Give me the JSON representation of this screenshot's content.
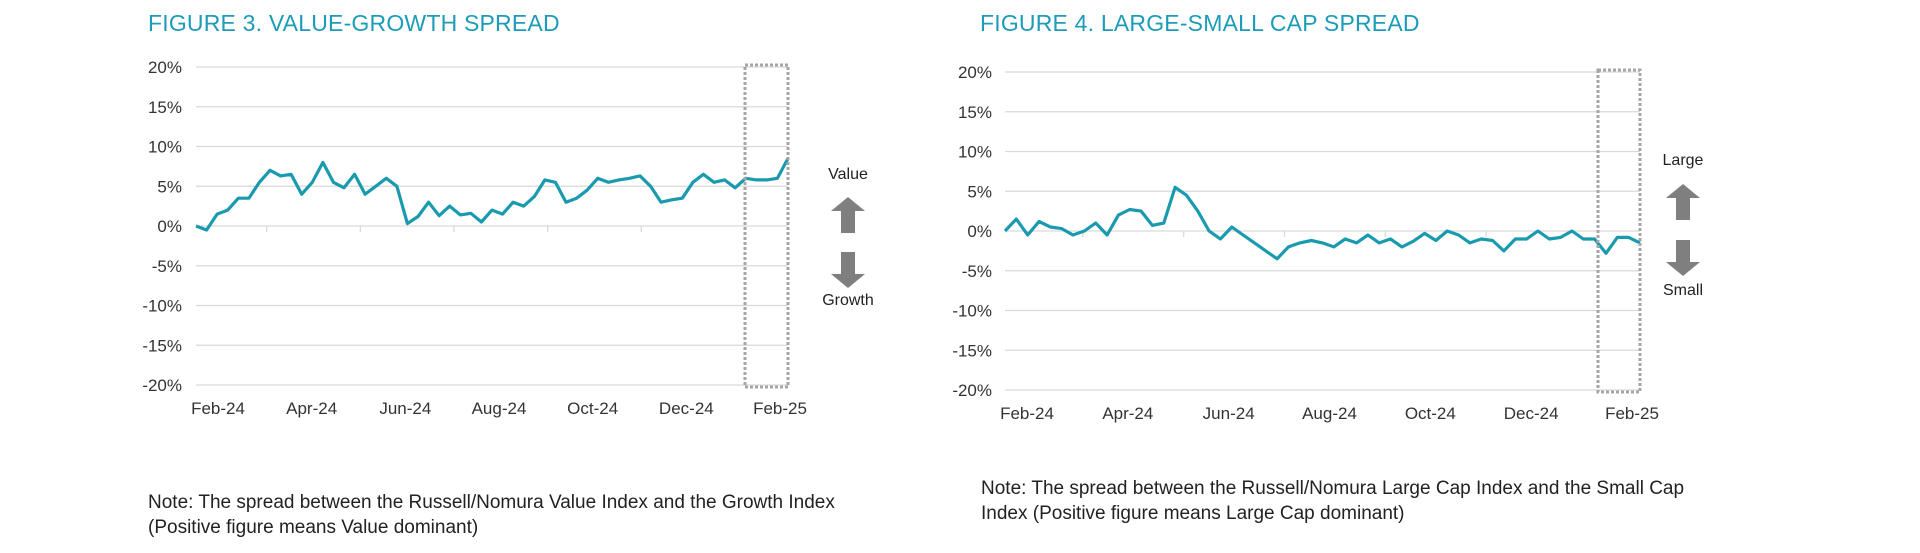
{
  "chart_data": [
    {
      "type": "line",
      "title": "FIGURE 3. VALUE-GROWTH SPREAD",
      "xlabel": "",
      "ylabel": "",
      "x_tick_labels": [
        "Feb-24",
        "Apr-24",
        "Jun-24",
        "Aug-24",
        "Oct-24",
        "Dec-24",
        "Feb-25"
      ],
      "x_range": [
        "Feb-24",
        "Feb-25"
      ],
      "y_tick_labels": [
        "20%",
        "15%",
        "10%",
        "5%",
        "0%",
        "-5%",
        "-10%",
        "-15%",
        "-20%"
      ],
      "ylim": [
        -20,
        20
      ],
      "grid": "horizontal",
      "line_color": "#1a9aae",
      "side_labels": {
        "up": "Value",
        "down": "Growth"
      },
      "series": [
        {
          "values": [
            0,
            -0.5,
            1.5,
            2,
            3.5,
            3.5,
            5.5,
            7,
            6.3,
            6.5,
            4,
            5.5,
            8,
            5.5,
            4.8,
            6.5,
            4,
            5,
            6,
            5,
            0.3,
            1.2,
            3,
            1.3,
            2.5,
            1.4,
            1.6,
            0.5,
            2,
            1.5,
            3,
            2.5,
            3.7,
            5.8,
            5.5,
            3,
            3.5,
            4.5,
            6,
            5.5,
            5.8,
            6,
            6.3,
            5,
            3,
            3.3,
            3.5,
            5.5,
            6.5,
            5.5,
            5.8,
            4.8,
            6,
            5.8,
            5.8,
            6,
            8.5
          ]
        }
      ],
      "note": "Note: The spread between the Russell/Nomura Value Index and the Growth Index (Positive figure means Value dominant)"
    },
    {
      "type": "line",
      "title": "FIGURE 4. LARGE-SMALL CAP SPREAD",
      "xlabel": "",
      "ylabel": "",
      "x_tick_labels": [
        "Feb-24",
        "Apr-24",
        "Jun-24",
        "Aug-24",
        "Oct-24",
        "Dec-24",
        "Feb-25"
      ],
      "x_range": [
        "Feb-24",
        "Feb-25"
      ],
      "y_tick_labels": [
        "20%",
        "15%",
        "10%",
        "5%",
        "0%",
        "-5%",
        "-10%",
        "-15%",
        "-20%"
      ],
      "ylim": [
        -20,
        20
      ],
      "grid": "horizontal",
      "line_color": "#1a9aae",
      "side_labels": {
        "up": "Large",
        "down": "Small"
      },
      "series": [
        {
          "values": [
            0,
            1.5,
            -0.5,
            1.2,
            0.5,
            0.3,
            -0.5,
            0,
            1,
            -0.5,
            2,
            2.7,
            2.5,
            0.7,
            1,
            5.5,
            4.5,
            2.5,
            0,
            -1,
            0.5,
            -0.5,
            -1.5,
            -2.5,
            -3.5,
            -2,
            -1.5,
            -1.2,
            -1.5,
            -2,
            -1,
            -1.5,
            -0.5,
            -1.5,
            -1,
            -2,
            -1.3,
            -0.3,
            -1.2,
            0,
            -0.5,
            -1.5,
            -1,
            -1.2,
            -2.5,
            -1,
            -1,
            0,
            -1,
            -0.8,
            0,
            -1,
            -1,
            -2.8,
            -0.8,
            -0.8,
            -1.5
          ]
        }
      ],
      "note": "Note: The spread between the Russell/Nomura Large Cap Index and the Small Cap Index (Positive figure means Large Cap dominant)"
    }
  ]
}
